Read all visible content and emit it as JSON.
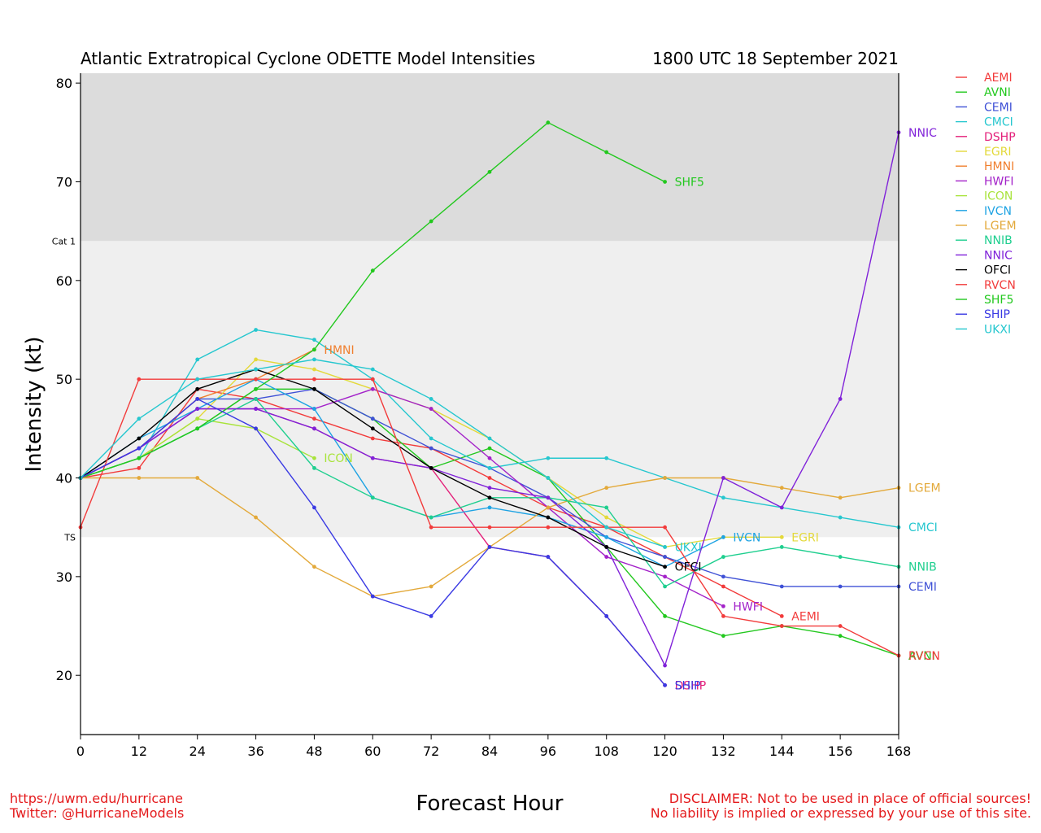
{
  "title": "Atlantic Extratropical Cyclone ODETTE Model Intensities",
  "subtitle": "1800 UTC 18 September 2021",
  "footer": {
    "url": "https://uwm.edu/hurricane",
    "twitter": "Twitter: @HurricaneModels",
    "disclaimer_line1": "DISCLAIMER: Not to be used in place of official sources!",
    "disclaimer_line2": "No liability is implied or expressed by your use of this site."
  },
  "chart_data": {
    "type": "line",
    "title": "Atlantic Extratropical Cyclone ODETTE Model Intensities",
    "subtitle": "1800 UTC 18 September 2021",
    "xlabel": "Forecast Hour",
    "ylabel": "Intensity (kt)",
    "xlim": [
      0,
      168
    ],
    "ylim": [
      14,
      81
    ],
    "xticks": [
      0,
      12,
      24,
      36,
      48,
      60,
      72,
      84,
      96,
      108,
      120,
      132,
      144,
      156,
      168
    ],
    "yticks": [
      20,
      30,
      40,
      50,
      60,
      70,
      80
    ],
    "bands": [
      {
        "label": "TS",
        "from": 34,
        "to": 64,
        "color": "#efefef"
      },
      {
        "label": "Cat 1",
        "from": 64,
        "to": 81,
        "color": "#dcdcdc"
      }
    ],
    "legend_position": "right, outside plot",
    "series": [
      {
        "name": "AEMI",
        "color": "#f23b3b",
        "x": [
          0,
          12,
          24,
          36,
          48,
          60,
          72,
          84,
          96,
          108,
          120,
          132,
          144
        ],
        "y": [
          40,
          41,
          49,
          48,
          46,
          44,
          43,
          40,
          37,
          35,
          32,
          29,
          26
        ]
      },
      {
        "name": "AVNI",
        "color": "#22c81e",
        "x": [
          0,
          12,
          24,
          36,
          48,
          60,
          72,
          84,
          96,
          108,
          120,
          132,
          144,
          156,
          168
        ],
        "y": [
          40,
          42,
          45,
          49,
          49,
          46,
          41,
          43,
          40,
          33,
          26,
          24,
          25,
          24,
          22
        ]
      },
      {
        "name": "CEMI",
        "color": "#3f51d6",
        "x": [
          0,
          12,
          24,
          36,
          48,
          60,
          72,
          84,
          96,
          108,
          120,
          132,
          144,
          156,
          168
        ],
        "y": [
          40,
          43,
          48,
          48,
          49,
          46,
          43,
          41,
          38,
          34,
          32,
          30,
          29,
          29,
          29
        ]
      },
      {
        "name": "CMCI",
        "color": "#26c7cf",
        "x": [
          0,
          12,
          24,
          36,
          48,
          60,
          72,
          84,
          96,
          108,
          120,
          132,
          144,
          156,
          168
        ],
        "y": [
          40,
          42,
          52,
          55,
          54,
          50,
          44,
          41,
          42,
          42,
          40,
          38,
          37,
          36,
          35
        ]
      },
      {
        "name": "DSHP",
        "color": "#e3207a",
        "x": [
          0,
          12,
          24,
          36,
          48,
          60,
          72,
          84,
          96,
          108,
          120
        ],
        "y": [
          40,
          43,
          47,
          47,
          45,
          42,
          41,
          33,
          32,
          26,
          19
        ]
      },
      {
        "name": "EGRI",
        "color": "#e3d93a",
        "x": [
          0,
          12,
          24,
          36,
          48,
          60,
          72,
          84,
          96,
          108,
          120,
          132,
          144
        ],
        "y": [
          40,
          42,
          46,
          52,
          51,
          49,
          47,
          44,
          40,
          36,
          33,
          34,
          34
        ]
      },
      {
        "name": "HMNI",
        "color": "#f07f2e",
        "x": [
          0,
          12,
          24,
          36,
          48
        ],
        "y": [
          40,
          43,
          48,
          50,
          53
        ]
      },
      {
        "name": "HWFI",
        "color": "#a322c9",
        "x": [
          0,
          12,
          24,
          36,
          48,
          60,
          72,
          84,
          96,
          108,
          120,
          132
        ],
        "y": [
          40,
          43,
          47,
          47,
          47,
          49,
          47,
          42,
          37,
          32,
          30,
          27
        ]
      },
      {
        "name": "ICON",
        "color": "#a8e33a",
        "x": [
          0,
          12,
          24,
          36,
          48
        ],
        "y": [
          40,
          42,
          46,
          45,
          42
        ]
      },
      {
        "name": "IVCN",
        "color": "#1ea3e3",
        "x": [
          0,
          12,
          24,
          36,
          48,
          60,
          72,
          84,
          96,
          108,
          120,
          132
        ],
        "y": [
          40,
          44,
          47,
          50,
          47,
          38,
          36,
          37,
          36,
          34,
          31,
          34
        ]
      },
      {
        "name": "LGEM",
        "color": "#e3a93a",
        "x": [
          0,
          12,
          24,
          36,
          48,
          60,
          72,
          84,
          96,
          108,
          120,
          132,
          144,
          156,
          168
        ],
        "y": [
          40,
          40,
          40,
          36,
          31,
          28,
          29,
          33,
          37,
          39,
          40,
          40,
          39,
          38,
          39
        ]
      },
      {
        "name": "NNIB",
        "color": "#1fcf8f",
        "x": [
          0,
          12,
          24,
          36,
          48,
          60,
          72,
          84,
          96,
          108,
          120,
          132,
          144,
          156,
          168
        ],
        "y": [
          40,
          42,
          45,
          48,
          41,
          38,
          36,
          38,
          38,
          37,
          29,
          32,
          33,
          32,
          31
        ]
      },
      {
        "name": "NNIC",
        "color": "#8022d9",
        "x": [
          0,
          12,
          24,
          36,
          48,
          60,
          72,
          84,
          96,
          108,
          120,
          132,
          144,
          156,
          168
        ],
        "y": [
          40,
          43,
          47,
          47,
          45,
          42,
          41,
          39,
          38,
          33,
          21,
          40,
          37,
          48,
          75
        ]
      },
      {
        "name": "OFCI",
        "color": "#000000",
        "x": [
          0,
          12,
          24,
          36,
          48,
          60,
          72,
          84,
          96,
          108,
          120
        ],
        "y": [
          40,
          44,
          49,
          51,
          49,
          45,
          41,
          38,
          36,
          33,
          31
        ]
      },
      {
        "name": "RVCN",
        "color": "#f23b3b",
        "x": [
          0,
          12,
          24,
          36,
          48,
          60,
          72,
          84,
          96,
          108,
          120,
          132,
          144,
          156,
          168
        ],
        "y": [
          35,
          50,
          50,
          50,
          50,
          50,
          35,
          35,
          35,
          35,
          35,
          26,
          25,
          25,
          22
        ]
      },
      {
        "name": "SHF5",
        "color": "#22c81e",
        "x": [
          0,
          12,
          24,
          36,
          48,
          60,
          72,
          84,
          96,
          108,
          120
        ],
        "y": [
          40,
          42,
          45,
          49,
          53,
          61,
          66,
          71,
          76,
          73,
          70
        ]
      },
      {
        "name": "SHIP",
        "color": "#3a3ae3",
        "x": [
          0,
          12,
          24,
          36,
          48,
          60,
          72,
          84,
          96,
          108,
          120
        ],
        "y": [
          40,
          43,
          48,
          45,
          37,
          28,
          26,
          33,
          32,
          26,
          19
        ]
      },
      {
        "name": "UKXI",
        "color": "#26c7cf",
        "x": [
          0,
          12,
          24,
          36,
          48,
          60,
          72,
          84,
          96,
          108,
          120
        ],
        "y": [
          40,
          46,
          50,
          51,
          52,
          51,
          48,
          44,
          40,
          35,
          33
        ]
      }
    ],
    "end_labels": [
      {
        "text": "AEMI",
        "series": "AEMI",
        "x": 144,
        "y": 26
      },
      {
        "text": "AVNI",
        "series": "AVNI",
        "x": 168,
        "y": 22
      },
      {
        "text": "CEMI",
        "series": "CEMI",
        "x": 168,
        "y": 29
      },
      {
        "text": "CMCI",
        "series": "CMCI",
        "x": 168,
        "y": 35
      },
      {
        "text": "DSHP",
        "series": "DSHP",
        "x": 120,
        "y": 19
      },
      {
        "text": "EGRI",
        "series": "EGRI",
        "x": 144,
        "y": 34
      },
      {
        "text": "HMNI",
        "series": "HMNI",
        "x": 48,
        "y": 53
      },
      {
        "text": "HWFI",
        "series": "HWFI",
        "x": 132,
        "y": 27
      },
      {
        "text": "ICON",
        "series": "ICON",
        "x": 48,
        "y": 42
      },
      {
        "text": "IVCN",
        "series": "IVCN",
        "x": 132,
        "y": 34
      },
      {
        "text": "LGEM",
        "series": "LGEM",
        "x": 168,
        "y": 39
      },
      {
        "text": "NNIB",
        "series": "NNIB",
        "x": 168,
        "y": 31
      },
      {
        "text": "NNIC",
        "series": "NNIC",
        "x": 168,
        "y": 75
      },
      {
        "text": "OFCI",
        "series": "OFCI",
        "x": 120,
        "y": 31
      },
      {
        "text": "RVCN",
        "series": "RVCN",
        "x": 168,
        "y": 22
      },
      {
        "text": "SHF5",
        "series": "SHF5",
        "x": 120,
        "y": 70
      },
      {
        "text": "SHIP",
        "series": "SHIP",
        "x": 120,
        "y": 19
      },
      {
        "text": "UKXI",
        "series": "UKXI",
        "x": 120,
        "y": 33
      }
    ]
  }
}
